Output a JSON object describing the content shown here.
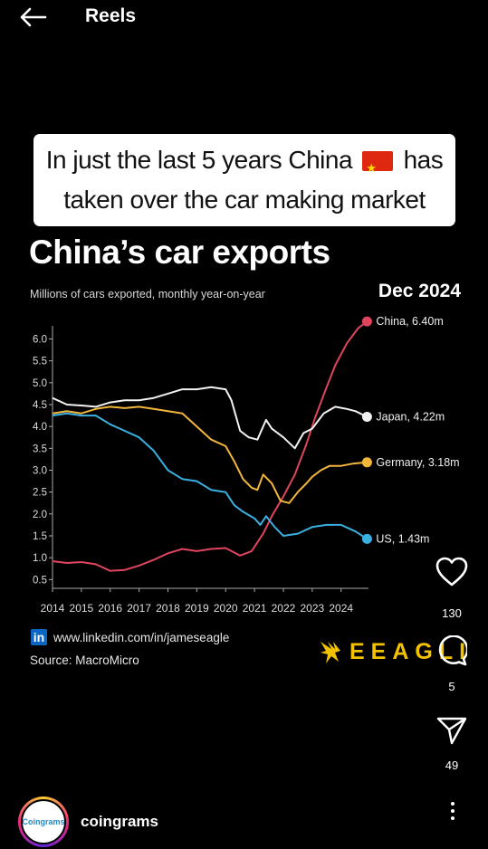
{
  "topbar": {
    "title": "Reels"
  },
  "caption": {
    "line1_before_flag": "In just the last 5 years China",
    "line1_after_flag": "has",
    "line2": "taken over the car making market"
  },
  "chart_header": {
    "title": "China’s car exports",
    "subtitle": "Millions of cars exported, monthly year-on-year",
    "date": "Dec 2024"
  },
  "chart_data": {
    "type": "line",
    "title": "China’s car exports",
    "subtitle": "Millions of cars exported, monthly year-on-year",
    "x_ticks": [
      "2014",
      "2015",
      "2016",
      "2017",
      "2018",
      "2019",
      "2020",
      "2021",
      "2022",
      "2023",
      "2024"
    ],
    "y_ticks": [
      "0.5",
      "1.0",
      "1.5",
      "2.0",
      "2.5",
      "3.0",
      "3.5",
      "4.0",
      "4.5",
      "5.0",
      "5.5",
      "6.0"
    ],
    "xlim": [
      2014.0,
      2024.95
    ],
    "ylim": [
      0.3,
      6.3
    ],
    "grid": false,
    "series": [
      {
        "name": "China",
        "end_label": "China, 6.40m",
        "color": "#e0455e",
        "points": [
          [
            2014.0,
            0.92
          ],
          [
            2014.5,
            0.88
          ],
          [
            2015.0,
            0.9
          ],
          [
            2015.5,
            0.85
          ],
          [
            2016.0,
            0.7
          ],
          [
            2016.5,
            0.72
          ],
          [
            2017.0,
            0.82
          ],
          [
            2017.5,
            0.95
          ],
          [
            2018.0,
            1.1
          ],
          [
            2018.5,
            1.2
          ],
          [
            2019.0,
            1.15
          ],
          [
            2019.5,
            1.2
          ],
          [
            2020.0,
            1.22
          ],
          [
            2020.5,
            1.05
          ],
          [
            2020.9,
            1.15
          ],
          [
            2021.3,
            1.55
          ],
          [
            2021.6,
            1.95
          ],
          [
            2022.0,
            2.4
          ],
          [
            2022.4,
            2.9
          ],
          [
            2022.8,
            3.6
          ],
          [
            2023.1,
            4.2
          ],
          [
            2023.5,
            4.9
          ],
          [
            2023.8,
            5.4
          ],
          [
            2024.2,
            5.9
          ],
          [
            2024.6,
            6.25
          ],
          [
            2024.9,
            6.4
          ]
        ]
      },
      {
        "name": "Japan",
        "end_label": "Japan, 4.22m",
        "color": "#f2f2f2",
        "points": [
          [
            2014.0,
            4.65
          ],
          [
            2014.5,
            4.5
          ],
          [
            2015.0,
            4.48
          ],
          [
            2015.5,
            4.45
          ],
          [
            2016.0,
            4.55
          ],
          [
            2016.5,
            4.6
          ],
          [
            2017.0,
            4.6
          ],
          [
            2017.5,
            4.65
          ],
          [
            2018.0,
            4.75
          ],
          [
            2018.5,
            4.85
          ],
          [
            2019.0,
            4.85
          ],
          [
            2019.5,
            4.9
          ],
          [
            2020.0,
            4.85
          ],
          [
            2020.2,
            4.6
          ],
          [
            2020.5,
            3.9
          ],
          [
            2020.8,
            3.75
          ],
          [
            2021.1,
            3.7
          ],
          [
            2021.4,
            4.15
          ],
          [
            2021.6,
            3.95
          ],
          [
            2022.0,
            3.75
          ],
          [
            2022.4,
            3.5
          ],
          [
            2022.7,
            3.85
          ],
          [
            2023.0,
            3.95
          ],
          [
            2023.4,
            4.3
          ],
          [
            2023.8,
            4.45
          ],
          [
            2024.2,
            4.4
          ],
          [
            2024.5,
            4.35
          ],
          [
            2024.9,
            4.22
          ]
        ]
      },
      {
        "name": "Germany",
        "end_label": "Germany, 3.18m",
        "color": "#f2b63a",
        "points": [
          [
            2014.0,
            4.3
          ],
          [
            2014.5,
            4.35
          ],
          [
            2015.0,
            4.3
          ],
          [
            2015.5,
            4.4
          ],
          [
            2016.0,
            4.45
          ],
          [
            2016.5,
            4.42
          ],
          [
            2017.0,
            4.45
          ],
          [
            2017.5,
            4.4
          ],
          [
            2018.0,
            4.35
          ],
          [
            2018.5,
            4.3
          ],
          [
            2019.0,
            4.0
          ],
          [
            2019.5,
            3.7
          ],
          [
            2020.0,
            3.55
          ],
          [
            2020.3,
            3.2
          ],
          [
            2020.6,
            2.8
          ],
          [
            2020.9,
            2.6
          ],
          [
            2021.1,
            2.55
          ],
          [
            2021.3,
            2.9
          ],
          [
            2021.6,
            2.7
          ],
          [
            2021.9,
            2.3
          ],
          [
            2022.2,
            2.25
          ],
          [
            2022.5,
            2.5
          ],
          [
            2022.8,
            2.7
          ],
          [
            2023.0,
            2.85
          ],
          [
            2023.3,
            3.0
          ],
          [
            2023.6,
            3.1
          ],
          [
            2024.0,
            3.1
          ],
          [
            2024.4,
            3.15
          ],
          [
            2024.9,
            3.18
          ]
        ]
      },
      {
        "name": "US",
        "end_label": "US, 1.43m",
        "color": "#3ab0e0",
        "points": [
          [
            2014.0,
            4.25
          ],
          [
            2014.5,
            4.3
          ],
          [
            2015.0,
            4.25
          ],
          [
            2015.5,
            4.25
          ],
          [
            2016.0,
            4.05
          ],
          [
            2016.5,
            3.9
          ],
          [
            2017.0,
            3.75
          ],
          [
            2017.5,
            3.45
          ],
          [
            2018.0,
            3.0
          ],
          [
            2018.5,
            2.8
          ],
          [
            2019.0,
            2.75
          ],
          [
            2019.5,
            2.55
          ],
          [
            2020.0,
            2.5
          ],
          [
            2020.3,
            2.2
          ],
          [
            2020.6,
            2.05
          ],
          [
            2021.0,
            1.9
          ],
          [
            2021.2,
            1.75
          ],
          [
            2021.4,
            1.95
          ],
          [
            2021.7,
            1.7
          ],
          [
            2022.0,
            1.5
          ],
          [
            2022.5,
            1.55
          ],
          [
            2023.0,
            1.7
          ],
          [
            2023.5,
            1.75
          ],
          [
            2024.0,
            1.75
          ],
          [
            2024.5,
            1.6
          ],
          [
            2024.9,
            1.43
          ]
        ]
      }
    ]
  },
  "footer": {
    "linkedin_badge": "in",
    "linkedin_url": "www.linkedin.com/in/jameseagle",
    "source": "Source: MacroMicro",
    "brand_name": "EEAGLI"
  },
  "actions": {
    "likes": "130",
    "comments": "5",
    "shares": "49"
  },
  "user": {
    "avatar_text": "Coingrams",
    "username": "coingrams"
  },
  "icons": {
    "back": "arrow-left-icon",
    "like": "heart-icon",
    "comment": "comment-icon",
    "share": "send-icon",
    "more": "more-vertical-icon"
  }
}
